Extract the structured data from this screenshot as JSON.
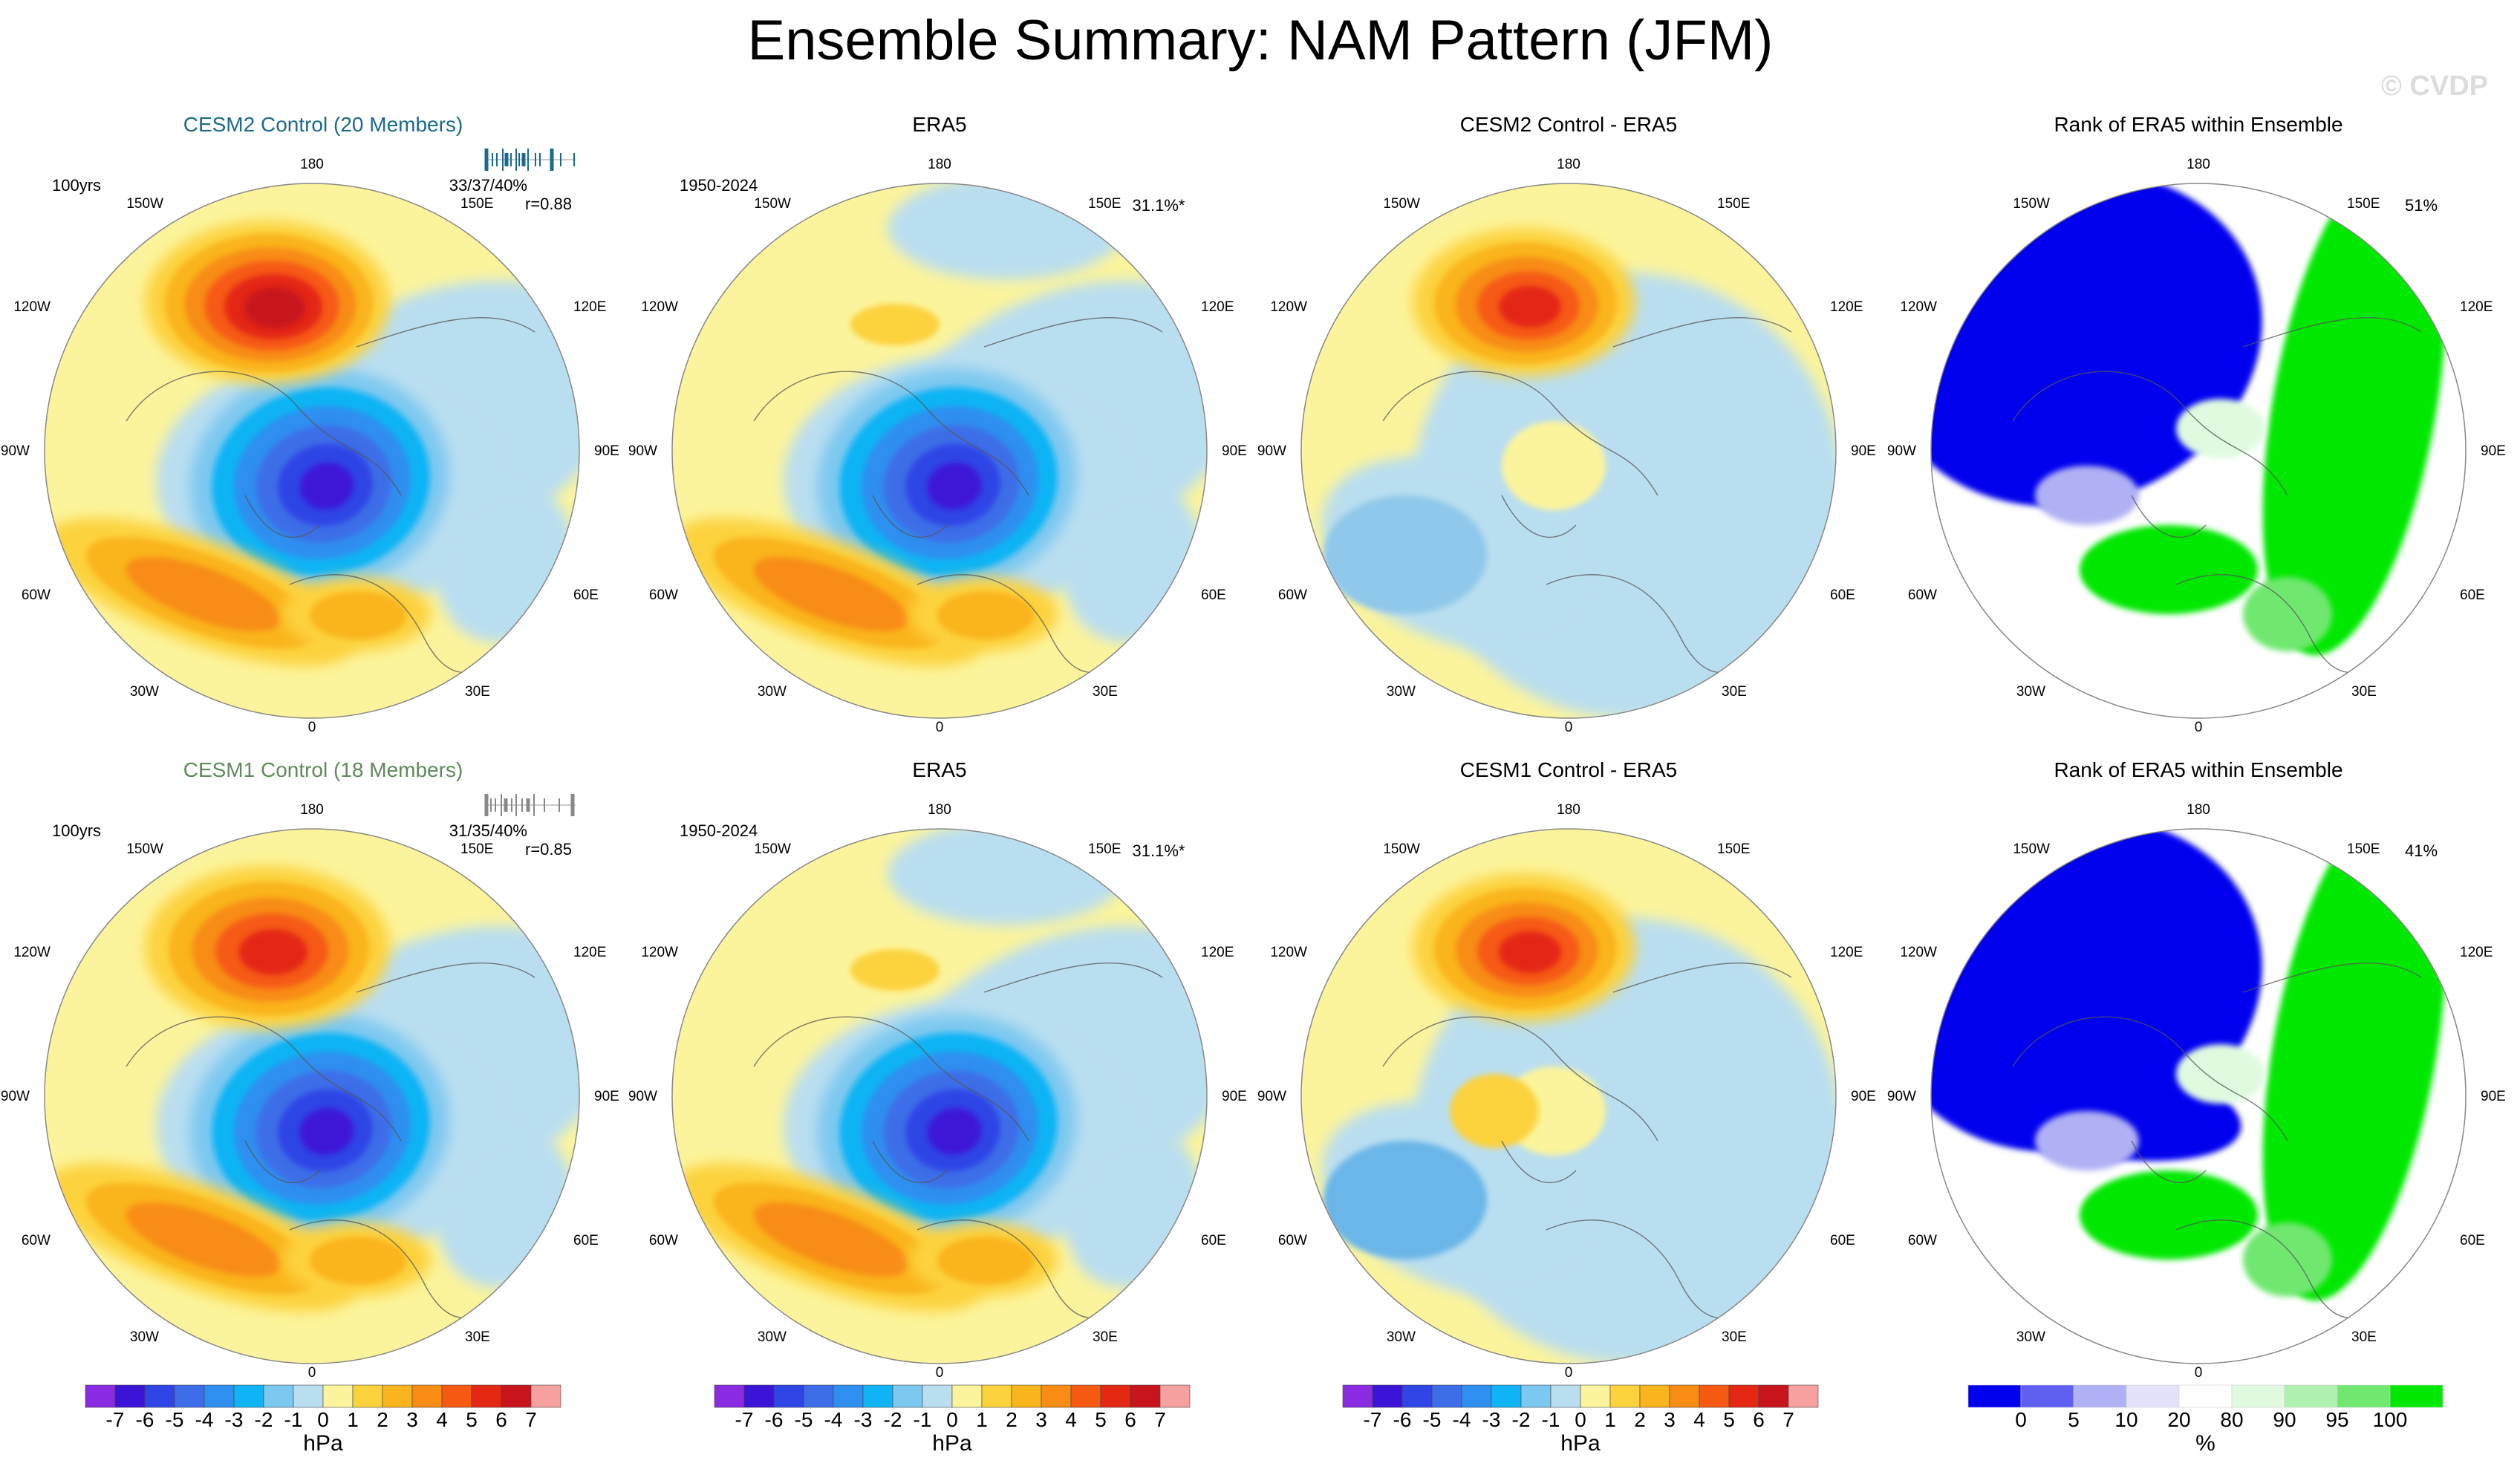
{
  "figure": {
    "title": "Ensemble Summary: NAM Pattern (JFM)",
    "watermark": "© CVDP"
  },
  "colors": {
    "ocean_light": "#b9def0",
    "land_yellow": "#fcf49c",
    "map_edge": "#888888",
    "coast": "#555555",
    "model1_title": "#1b6a8c",
    "model2_title": "#5f8a5a"
  },
  "long_labels": {
    "top": "180",
    "upper_left": "150W",
    "upper_right": "150E",
    "mid_upper_left": "120W",
    "mid_upper_right": "120E",
    "left": "90W",
    "right": "90E",
    "mid_lower_left": "60W",
    "mid_lower_right": "60E",
    "lower_left": "30W",
    "lower_right": "30E",
    "bottom": "0"
  },
  "panels": {
    "r0c0": {
      "title": "CESM2 Control (20 Members)",
      "left_note": "100yrs",
      "stat1": "33/37/40%",
      "stat2": "r=0.88"
    },
    "r0c1": {
      "title": "ERA5",
      "left_note": "1950-2024",
      "right_note": "31.1%*"
    },
    "r0c2": {
      "title": "CESM2 Control - ERA5"
    },
    "r0c3": {
      "title": "Rank of ERA5 within Ensemble",
      "right_note": "51%"
    },
    "r1c0": {
      "title": "CESM1 Control (18 Members)",
      "left_note": "100yrs",
      "stat1": "31/35/40%",
      "stat2": "r=0.85"
    },
    "r1c1": {
      "title": "ERA5",
      "left_note": "1950-2024",
      "right_note": "31.1%*"
    },
    "r1c2": {
      "title": "CESM1 Control - ERA5"
    },
    "r1c3": {
      "title": "Rank of ERA5 within Ensemble",
      "right_note": "41%"
    }
  },
  "chart_data": [
    {
      "type": "heatmap",
      "title": "Ensemble Summary: NAM Pattern (JFM)",
      "projection": "north polar stereographic",
      "panels": [
        "CESM2 Control (20 Members)",
        "ERA5",
        "CESM2 Control - ERA5",
        "Rank of ERA5 within Ensemble",
        "CESM1 Control (18 Members)",
        "ERA5",
        "CESM1 Control - ERA5",
        "Rank of ERA5 within Ensemble"
      ]
    },
    {
      "type": "colorbar",
      "name": "slp-colorbar",
      "units": "hPa",
      "ticks": [
        "-7",
        "-6",
        "-5",
        "-4",
        "-3",
        "-2",
        "-1",
        "0",
        "1",
        "2",
        "3",
        "4",
        "5",
        "6",
        "7"
      ],
      "colors": [
        "#8a2be2",
        "#3c14d8",
        "#2f45e6",
        "#3d6ee8",
        "#2f8ff0",
        "#10b4f4",
        "#7cc8f0",
        "#b9def0",
        "#fcf49c",
        "#fcd23c",
        "#fab41e",
        "#f88c14",
        "#f65a12",
        "#e42814",
        "#c8141c",
        "#f6a0a0"
      ]
    },
    {
      "type": "colorbar",
      "name": "rank-colorbar",
      "units": "%",
      "ticks": [
        "0",
        "5",
        "10",
        "20",
        "80",
        "90",
        "95",
        "100"
      ],
      "colors": [
        "#0000ee",
        "#6060f0",
        "#b0b0f4",
        "#e2e2fa",
        "#ffffff",
        "#e0fae0",
        "#b0f0b0",
        "#70e870",
        "#00e800"
      ]
    }
  ]
}
